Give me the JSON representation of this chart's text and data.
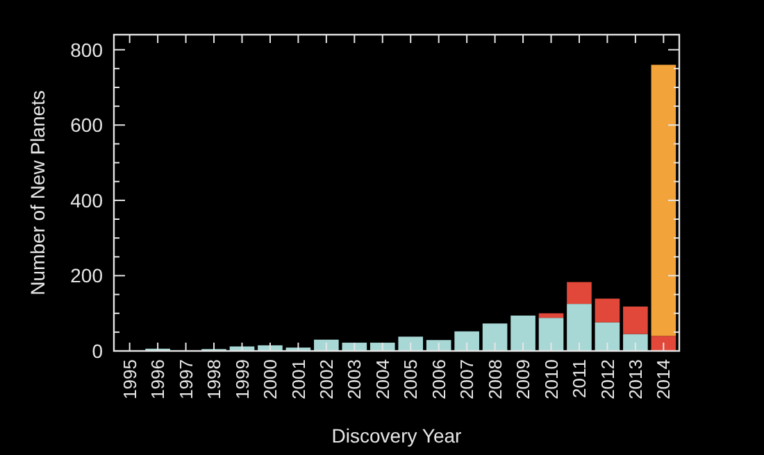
{
  "chart_data": {
    "type": "bar",
    "stacked": true,
    "xlabel": "Discovery Year",
    "ylabel": "Number of New Planets",
    "categories": [
      "1995",
      "1996",
      "1997",
      "1998",
      "1999",
      "2000",
      "2001",
      "2002",
      "2003",
      "2004",
      "2005",
      "2006",
      "2007",
      "2008",
      "2009",
      "2010",
      "2011",
      "2012",
      "2013",
      "2014"
    ],
    "series": [
      {
        "color": "#a8d8d6",
        "values": [
          1,
          6,
          1,
          5,
          12,
          15,
          9,
          30,
          22,
          22,
          38,
          29,
          52,
          73,
          94,
          88,
          125,
          76,
          45,
          0
        ]
      },
      {
        "color": "#e2483a",
        "values": [
          0,
          0,
          0,
          0,
          0,
          0,
          0,
          0,
          0,
          0,
          0,
          0,
          0,
          0,
          0,
          12,
          58,
          63,
          73,
          40
        ]
      },
      {
        "color": "#f2a33a",
        "values": [
          0,
          0,
          0,
          0,
          0,
          0,
          0,
          0,
          0,
          0,
          0,
          0,
          0,
          0,
          0,
          0,
          0,
          0,
          0,
          720
        ]
      }
    ],
    "ylim": [
      0,
      840
    ],
    "yticks": [
      0,
      {
        "value": 50,
        "label": null
      },
      200,
      {
        "value": 100,
        "label": null
      },
      {
        "value": 150,
        "label": null
      },
      {
        "value": 250,
        "label": null
      },
      {
        "value": 300,
        "label": null
      },
      {
        "value": 350,
        "label": null
      },
      400,
      {
        "value": 450,
        "label": null
      },
      {
        "value": 500,
        "label": null
      },
      {
        "value": 550,
        "label": null
      },
      600,
      {
        "value": 650,
        "label": null
      },
      {
        "value": 700,
        "label": null
      },
      {
        "value": 750,
        "label": null
      },
      800
    ],
    "grid": false
  }
}
